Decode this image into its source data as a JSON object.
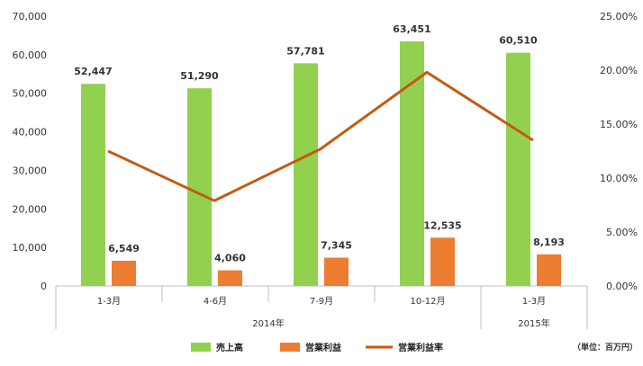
{
  "chart_data": {
    "type": "bar",
    "categories": [
      "1-3月",
      "4-6月",
      "7-9月",
      "10-12月",
      "1-3月"
    ],
    "groups": [
      {
        "label": "2014年",
        "count": 4
      },
      {
        "label": "2015年",
        "count": 1
      }
    ],
    "series": [
      {
        "name": "売上高",
        "type": "bar",
        "axis": "left",
        "color": "#92d050",
        "values": [
          52447,
          51290,
          57781,
          63451,
          60510
        ],
        "labels": [
          "52,447",
          "51,290",
          "57,781",
          "63,451",
          "60,510"
        ]
      },
      {
        "name": "営業利益",
        "type": "bar",
        "axis": "left",
        "color": "#ed7d31",
        "values": [
          6549,
          4060,
          7345,
          12535,
          8193
        ],
        "labels": [
          "6,549",
          "4,060",
          "7,345",
          "12,535",
          "8,193"
        ]
      },
      {
        "name": "営業利益率",
        "type": "line",
        "axis": "right",
        "color": "#c55a11",
        "values": [
          12.5,
          7.9,
          12.7,
          19.8,
          13.5
        ]
      }
    ],
    "ylim_left": [
      0,
      70000
    ],
    "yticks_left": [
      "0",
      "10,000",
      "20,000",
      "30,000",
      "40,000",
      "50,000",
      "60,000",
      "70,000"
    ],
    "ylim_right": [
      0,
      25
    ],
    "yticks_right": [
      "0.00%",
      "5.00%",
      "10.00%",
      "15.00%",
      "20.00%",
      "25.00%"
    ],
    "legend_position": "bottom",
    "unit_note": "（単位：百万円）"
  }
}
